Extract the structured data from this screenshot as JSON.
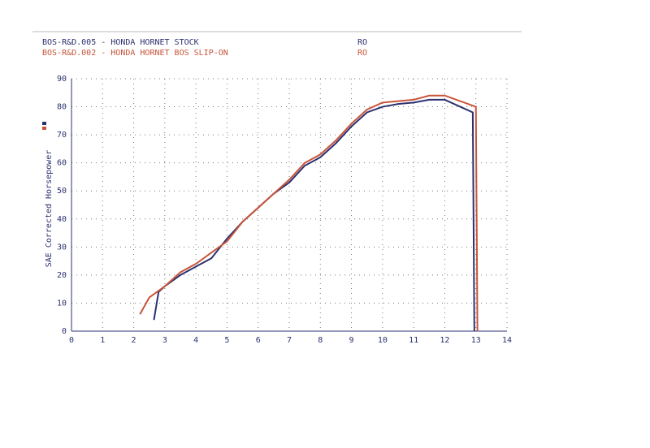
{
  "chart_data": {
    "type": "line",
    "y_label": "SAE Corrected Horsepower",
    "series": [
      {
        "name": "BOS-R&D.005 - HONDA HORNET STOCK",
        "legend_note": "RO",
        "color": "#2b3170",
        "x": [
          2.65,
          2.8,
          3,
          3.5,
          4,
          4.5,
          5,
          5.5,
          6,
          6.5,
          7,
          7.5,
          8,
          8.5,
          9,
          9.5,
          10,
          10.5,
          11,
          11.5,
          12,
          12.5,
          12.9,
          12.95
        ],
        "values": [
          4,
          14,
          16,
          20,
          23,
          26,
          33,
          39,
          44,
          49,
          53,
          59,
          62,
          67,
          73,
          78,
          80,
          81,
          81.5,
          82.5,
          82.5,
          80,
          78,
          0
        ]
      },
      {
        "name": "BOS-R&D.002 - HONDA HORNET BOS SLIP-ON",
        "legend_note": "RO",
        "color": "#c8553a",
        "x": [
          2.2,
          2.5,
          3,
          3.5,
          4,
          4.5,
          5,
          5.5,
          6,
          6.5,
          7,
          7.5,
          8,
          8.5,
          9,
          9.5,
          10,
          10.5,
          11,
          11.5,
          12,
          12.5,
          13,
          13.05
        ],
        "values": [
          6,
          12,
          16,
          21,
          24,
          28,
          32,
          39,
          44,
          49,
          54,
          60,
          63,
          68,
          74,
          79,
          81.5,
          82,
          82.5,
          84,
          84,
          82,
          80,
          0
        ]
      }
    ],
    "xlim": [
      0,
      14
    ],
    "xticks": [
      0,
      1,
      2,
      3,
      4,
      5,
      6,
      7,
      8,
      9,
      10,
      11,
      12,
      13,
      14
    ],
    "ylim": [
      0,
      90
    ],
    "yticks": [
      0,
      10,
      20,
      30,
      40,
      50,
      60,
      70,
      80,
      90
    ],
    "grid": true
  }
}
